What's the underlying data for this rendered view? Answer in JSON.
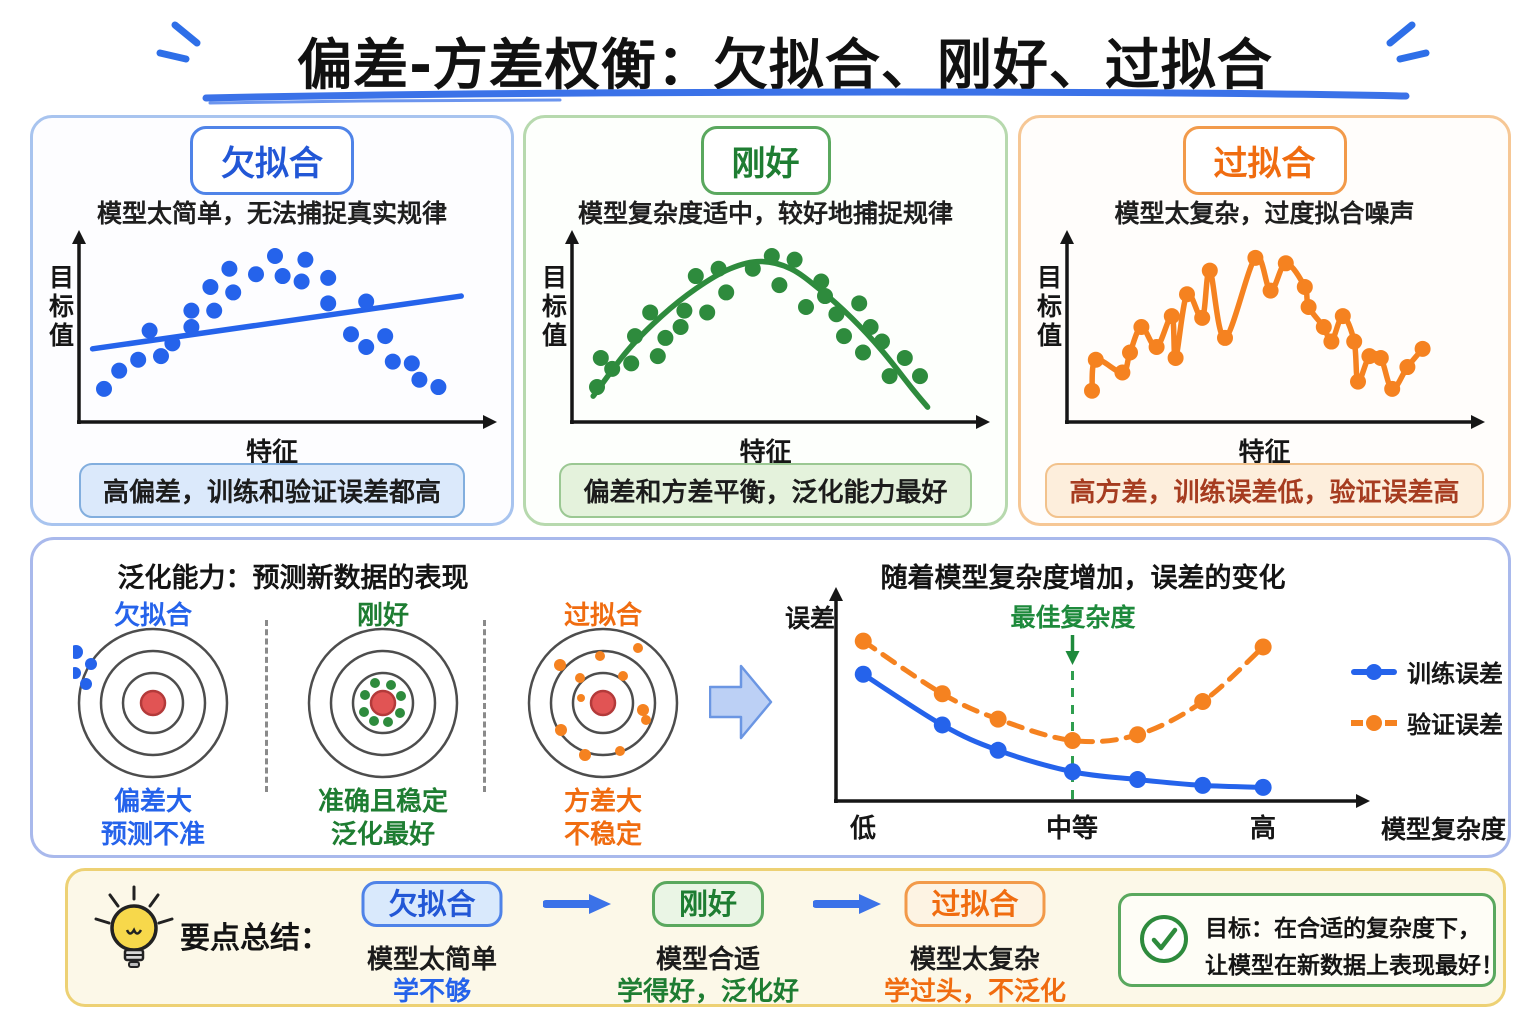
{
  "title": {
    "text": "偏差-方差权衡：欠拟合、刚好、过拟合"
  },
  "panels": [
    {
      "label": "欠拟合",
      "subtitle": "模型太简单，无法捕捉真实规律",
      "y_axis": "目标值",
      "x_axis": "特征",
      "caption": "高偏差，训练和验证误差都高",
      "color": "#2563eb"
    },
    {
      "label": "刚好",
      "subtitle": "模型复杂度适中，较好地捕捉规律",
      "y_axis": "目标值",
      "x_axis": "特征",
      "caption": "偏差和方差平衡，泛化能力最好",
      "color": "#2e8b3d"
    },
    {
      "label": "过拟合",
      "subtitle": "模型太复杂，过度拟合噪声",
      "y_axis": "目标值",
      "x_axis": "特征",
      "caption": "高方差，训练误差低，验证误差高",
      "color": "#f58220",
      "caption_color": "#a63c20"
    }
  ],
  "generalization": {
    "title": "泛化能力：预测新数据的表现",
    "ring_color": "#4d4d4d",
    "bull_fill": "#e15454",
    "bull_stroke": "#b33a3a",
    "targets": [
      {
        "label": "欠拟合",
        "caption_line1": "偏差大",
        "caption_line2": "预测不准",
        "color": "#2563eb",
        "dots": [
          [
            -77,
            -51,
            7
          ],
          [
            -89,
            -46,
            6
          ],
          [
            -62,
            -39,
            6
          ],
          [
            -95,
            -33,
            5
          ],
          [
            -78,
            -30,
            6
          ],
          [
            -87,
            -16,
            6
          ],
          [
            -67,
            -19,
            6
          ]
        ]
      },
      {
        "label": "刚好",
        "caption_line1": "准确且稳定",
        "caption_line2": "泛化最好",
        "color": "#2e8b3d",
        "dots": [
          [
            -8,
            -20,
            5
          ],
          [
            8,
            -18,
            5
          ],
          [
            18,
            -7,
            5
          ],
          [
            17,
            10,
            5
          ],
          [
            5,
            19,
            5
          ],
          [
            -9,
            18,
            5
          ],
          [
            -19,
            9,
            5
          ],
          [
            -18,
            -8,
            5
          ]
        ]
      },
      {
        "label": "过拟合",
        "caption_line1": "方差大",
        "caption_line2": "不稳定",
        "color": "#f58220",
        "dots": [
          [
            -43,
            -38,
            6
          ],
          [
            -23,
            -25,
            5
          ],
          [
            -3,
            -47,
            5
          ],
          [
            20,
            -27,
            5
          ],
          [
            35,
            -55,
            5
          ],
          [
            40,
            7,
            6
          ],
          [
            -42,
            27,
            6
          ],
          [
            -18,
            52,
            6
          ],
          [
            17,
            48,
            5
          ],
          [
            43,
            17,
            5
          ],
          [
            -22,
            -5,
            4
          ]
        ]
      }
    ]
  },
  "complexity_chart": {
    "title": "随着模型复杂度增加，误差的变化",
    "y_axis": "误差",
    "x_axis": "模型复杂度",
    "ticks": [
      "低",
      "中等",
      "高"
    ],
    "annotation": "最佳复杂度",
    "legend": [
      {
        "label": "训练误差",
        "color": "#2563eb",
        "dashed": false
      },
      {
        "label": "验证误差",
        "color": "#f58220",
        "dashed": true
      }
    ]
  },
  "summary": {
    "heading": "要点总结：",
    "items": [
      {
        "label": "欠拟合",
        "line1": "模型太简单",
        "line2": "学不够",
        "color": "#2563eb",
        "pill_bg": "#d9e9fc",
        "pill_border": "#4f83e8"
      },
      {
        "label": "刚好",
        "line1": "模型合适",
        "line2": "学得好，泛化好",
        "color": "#1e7d32",
        "pill_bg": "#eaf5e5",
        "pill_border": "#5aa85e"
      },
      {
        "label": "过拟合",
        "line1": "模型太复杂",
        "line2": "学过头，不泛化",
        "color": "#f06c10",
        "pill_bg": "#fdf3e3",
        "pill_border": "#f29a4a"
      }
    ],
    "goal_line1": "目标：在合适的复杂度下，",
    "goal_line2": "让模型在新数据上表现最好！"
  },
  "chart_data": [
    {
      "type": "scatter",
      "title": "欠拟合",
      "xlabel": "特征",
      "ylabel": "目标值",
      "units": "relative 0-100 (axes unlabeled)",
      "color": "#2563eb",
      "points": [
        [
          5,
          16
        ],
        [
          9,
          26
        ],
        [
          14,
          32
        ],
        [
          17,
          48
        ],
        [
          20,
          34
        ],
        [
          23,
          41
        ],
        [
          28,
          50
        ],
        [
          28,
          59
        ],
        [
          33,
          72
        ],
        [
          34,
          59
        ],
        [
          38,
          82
        ],
        [
          39,
          69
        ],
        [
          45,
          79
        ],
        [
          50,
          89
        ],
        [
          52,
          78
        ],
        [
          57,
          75
        ],
        [
          58,
          87
        ],
        [
          64,
          77
        ],
        [
          64,
          63
        ],
        [
          70,
          46
        ],
        [
          74,
          64
        ],
        [
          74,
          39
        ],
        [
          79,
          45
        ],
        [
          81,
          31
        ],
        [
          86,
          30
        ],
        [
          88,
          21
        ],
        [
          93,
          17
        ]
      ],
      "model_line": {
        "shape": "linear",
        "points": [
          [
            2,
            38
          ],
          [
            99,
            67
          ]
        ]
      }
    },
    {
      "type": "scatter",
      "title": "刚好",
      "xlabel": "特征",
      "ylabel": "目标值",
      "units": "relative 0-100 (axes unlabeled)",
      "color": "#2e8b3d",
      "points": [
        [
          5,
          17
        ],
        [
          6,
          33
        ],
        [
          9,
          27
        ],
        [
          14,
          30
        ],
        [
          15,
          45
        ],
        [
          19,
          58
        ],
        [
          21,
          34
        ],
        [
          23,
          44
        ],
        [
          27,
          50
        ],
        [
          28,
          59
        ],
        [
          31,
          78
        ],
        [
          34,
          58
        ],
        [
          37,
          82
        ],
        [
          39,
          69
        ],
        [
          46,
          82
        ],
        [
          51,
          89
        ],
        [
          53,
          73
        ],
        [
          57,
          87
        ],
        [
          60,
          61
        ],
        [
          64,
          75
        ],
        [
          65,
          67
        ],
        [
          68,
          57
        ],
        [
          70,
          45
        ],
        [
          74,
          63
        ],
        [
          75,
          36
        ],
        [
          77,
          50
        ],
        [
          80,
          42
        ],
        [
          82,
          23
        ],
        [
          86,
          33
        ],
        [
          90,
          23
        ]
      ],
      "model_line": {
        "shape": "smooth",
        "points": [
          [
            4,
            12
          ],
          [
            13,
            37
          ],
          [
            22,
            56
          ],
          [
            31,
            71
          ],
          [
            40,
            82
          ],
          [
            48,
            86
          ],
          [
            56,
            82
          ],
          [
            64,
            70
          ],
          [
            72,
            55
          ],
          [
            80,
            37
          ],
          [
            88,
            16
          ],
          [
            92,
            6
          ]
        ]
      }
    },
    {
      "type": "scatter",
      "title": "过拟合",
      "xlabel": "特征",
      "ylabel": "目标值",
      "units": "relative 0-100 (axes unlabeled)",
      "color": "#f58220",
      "points": [
        [
          5,
          15
        ],
        [
          6,
          32
        ],
        [
          13,
          25
        ],
        [
          15,
          36
        ],
        [
          18,
          50
        ],
        [
          22,
          39
        ],
        [
          26,
          56
        ],
        [
          27,
          33
        ],
        [
          30,
          68
        ],
        [
          34,
          55
        ],
        [
          36,
          81
        ],
        [
          40,
          44
        ],
        [
          48,
          88
        ],
        [
          52,
          70
        ],
        [
          56,
          85
        ],
        [
          61,
          72
        ],
        [
          62,
          61
        ],
        [
          66,
          50
        ],
        [
          68,
          42
        ],
        [
          71,
          56
        ],
        [
          74,
          42
        ],
        [
          75,
          20
        ],
        [
          78,
          34
        ],
        [
          81,
          33
        ],
        [
          84,
          16
        ],
        [
          88,
          28
        ],
        [
          92,
          38
        ]
      ],
      "model_line": {
        "shape": "through-points"
      }
    },
    {
      "type": "line",
      "title": "随着模型复杂度增加，误差的变化",
      "xlabel": "模型复杂度",
      "ylabel": "误差",
      "x_ticks": [
        {
          "label": "低",
          "x": 5
        },
        {
          "label": "中等",
          "x": 50
        },
        {
          "label": "高",
          "x": 91
        }
      ],
      "annotation": "最佳复杂度",
      "annotation_color": "#1e8a3c",
      "optimum_x": 50,
      "units": "relative 0-100 (axes unlabeled)",
      "x": [
        5,
        22,
        34,
        50,
        64,
        78,
        91
      ],
      "series": [
        {
          "name": "训练误差",
          "color": "#2563eb",
          "style": "solid",
          "values": [
            65,
            39,
            26,
            15,
            11,
            8,
            7
          ]
        },
        {
          "name": "验证误差",
          "color": "#f58220",
          "style": "dashed",
          "values": [
            82,
            55,
            42,
            31,
            34,
            51,
            79
          ]
        }
      ],
      "legend_position": "right"
    }
  ]
}
